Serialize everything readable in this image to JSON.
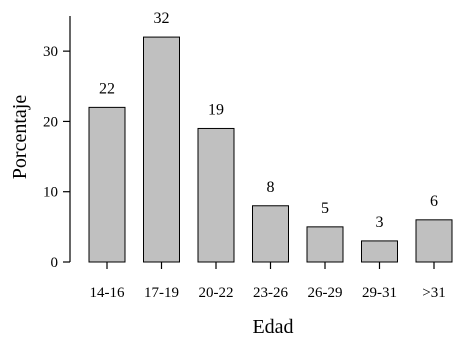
{
  "chart_data": {
    "type": "bar",
    "title": "",
    "xlabel": "Edad",
    "ylabel": "Porcentaje",
    "categories": [
      "14-16",
      "17-19",
      "20-22",
      "23-26",
      "26-29",
      "29-31",
      ">31"
    ],
    "values": [
      22,
      32,
      19,
      8,
      5,
      3,
      6
    ],
    "data_labels": [
      "22",
      "32",
      "19",
      "8",
      "5",
      "3",
      "6"
    ],
    "ylim": [
      0,
      35
    ],
    "yticks": [
      0,
      10,
      20,
      30
    ],
    "ytick_labels": [
      "0",
      "10",
      "20",
      "30"
    ],
    "grid": false,
    "legend": "none",
    "bar_color": "#c0c0c0",
    "edge_color": "#000000"
  }
}
